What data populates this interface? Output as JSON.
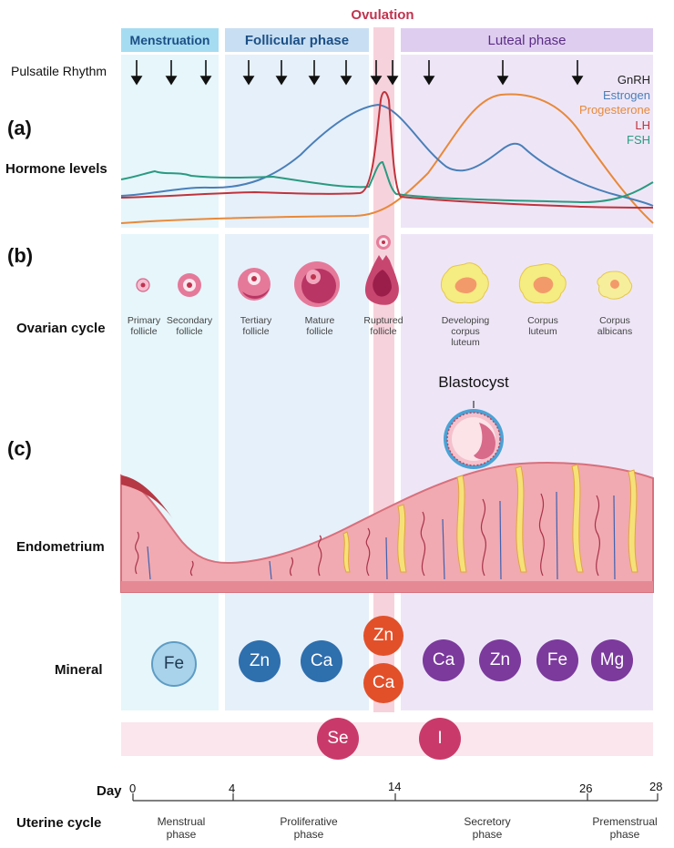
{
  "ovulation_title": "Ovulation",
  "phases": {
    "menstruation": "Menstruation",
    "follicular": "Follicular phase",
    "luteal": "Luteal phase"
  },
  "pulsatile_label": "Pulsatile Rhythm",
  "panels": {
    "a": "(a)",
    "b": "(b)",
    "c": "(c)"
  },
  "rows": {
    "hormone": "Hormone levels",
    "ovarian": "Ovarian cycle",
    "endometrium": "Endometrium",
    "mineral": "Mineral"
  },
  "legend": [
    {
      "name": "GnRH",
      "color": "#222222"
    },
    {
      "name": "Estrogen",
      "color": "#4a7fb8"
    },
    {
      "name": "Progesterone",
      "color": "#e8893a"
    },
    {
      "name": "LH",
      "color": "#c0333c"
    },
    {
      "name": "FSH",
      "color": "#2a9a80"
    }
  ],
  "follicles": [
    {
      "line1": "Primary",
      "line2": "follicle",
      "line3": ""
    },
    {
      "line1": "Secondary",
      "line2": "follicle",
      "line3": ""
    },
    {
      "line1": "Tertiary",
      "line2": "follicle",
      "line3": ""
    },
    {
      "line1": "Mature",
      "line2": "follicle",
      "line3": ""
    },
    {
      "line1": "Ruptured",
      "line2": "follicle",
      "line3": ""
    },
    {
      "line1": "Developing",
      "line2": "corpus",
      "line3": "luteum"
    },
    {
      "line1": "Corpus",
      "line2": "luteum",
      "line3": ""
    },
    {
      "line1": "Corpus",
      "line2": "albicans",
      "line3": ""
    }
  ],
  "blastocyst": "Blastocyst",
  "minerals": {
    "menstruation": [
      "Fe"
    ],
    "follicular": [
      "Zn",
      "Ca"
    ],
    "ovulation": [
      "Zn",
      "Ca"
    ],
    "luteal": [
      "Ca",
      "Zn",
      "Fe",
      "Mg"
    ],
    "whole_cycle": [
      "Se",
      "I"
    ]
  },
  "timeline": {
    "day_label": "Day",
    "ticks": [
      "0",
      "4",
      "14",
      "26",
      "28"
    ],
    "uterine_label": "Uterine cycle",
    "phases": [
      {
        "line1": "Menstrual",
        "line2": "phase"
      },
      {
        "line1": "Proliferative",
        "line2": "phase"
      },
      {
        "line1": "Secretory",
        "line2": "phase"
      },
      {
        "line1": "Premenstrual",
        "line2": "phase"
      }
    ]
  },
  "colors": {
    "menstruation_bg": "#e6f6fb",
    "follicular_bg": "#e6f0fa",
    "luteal_bg": "#eee6f7",
    "ovulation_band": "#f6d3dc",
    "fe_light": "#a9d3ea",
    "zn_ca_blue": "#2e6fae",
    "ovulation_orange": "#e2502a",
    "luteal_purple": "#7b3a9c",
    "se_i_pink": "#c93a6a"
  }
}
